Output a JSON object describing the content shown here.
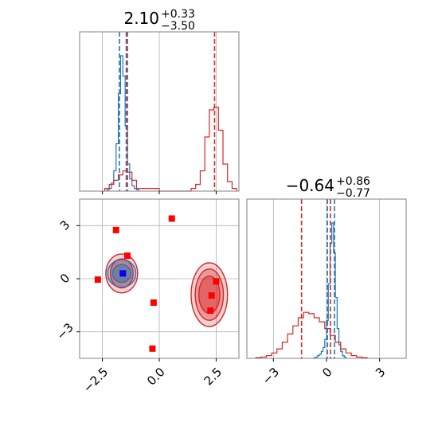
{
  "colors": {
    "series_blue": "#1f77b4",
    "series_red": "#d62728",
    "marker_red": "#ff0000",
    "marker_blue": "#0000ff",
    "grid": "#b0b0b0",
    "spine": "#808080"
  },
  "chart_data": {
    "type": "corner",
    "grid": true,
    "titles": [
      {
        "param": "param_1",
        "value": "2.10",
        "plus": "+0.33",
        "minus": "−3.50"
      },
      {
        "param": "param_2",
        "value": "−0.64",
        "plus": "+0.86",
        "minus": "−0.77"
      }
    ],
    "axes": {
      "param_1": {
        "range": [
          -3.5,
          3.5
        ],
        "ticks": [
          -2.5,
          0.0,
          2.5
        ],
        "tick_labels": [
          "−2.5",
          "0.0",
          "2.5"
        ]
      },
      "param_2": {
        "range": [
          -4.5,
          4.5
        ],
        "ticks": [
          -3,
          0,
          3
        ],
        "tick_labels": [
          "−3",
          "0",
          "3"
        ]
      }
    },
    "series": [
      {
        "color": "series_blue",
        "histograms": {
          "param_1": {
            "edges": [
              -2.3,
              -2.2,
              -2.1,
              -2.0,
              -1.9,
              -1.8,
              -1.7,
              -1.6,
              -1.5,
              -1.4,
              -1.3,
              -1.2,
              -1.1,
              -1.0,
              -0.9
            ],
            "counts": [
              0.01,
              0.02,
              0.06,
              0.15,
              0.35,
              0.72,
              1.0,
              0.85,
              0.48,
              0.2,
              0.09,
              0.04,
              0.02,
              0.01
            ]
          },
          "param_2": {
            "edges": [
              -0.7,
              -0.6,
              -0.5,
              -0.4,
              -0.3,
              -0.2,
              -0.1,
              0.0,
              0.1,
              0.2,
              0.3,
              0.4,
              0.5,
              0.6,
              0.7,
              0.8,
              0.9,
              1.0,
              1.1
            ],
            "counts": [
              0.005,
              0.01,
              0.02,
              0.03,
              0.05,
              0.08,
              0.14,
              0.28,
              0.55,
              0.85,
              1.0,
              0.78,
              0.45,
              0.22,
              0.1,
              0.05,
              0.02,
              0.01
            ]
          }
        },
        "quantile_lines": {
          "param_1": [
            -1.75,
            -1.45
          ],
          "param_2": [
            0.05,
            0.45
          ]
        },
        "contours_2d": [
          {
            "cx": -1.65,
            "cy": 0.3,
            "rx": 0.62,
            "ry": 0.78,
            "level": "outer"
          },
          {
            "cx": -1.65,
            "cy": 0.3,
            "rx": 0.4,
            "ry": 0.5,
            "level": "inner"
          }
        ]
      },
      {
        "color": "series_red",
        "histograms": {
          "param_1": {
            "edges": [
              -2.4,
              -2.2,
              -2.0,
              -1.8,
              -1.6,
              -1.4,
              -1.2,
              -1.0,
              0.0,
              0.2,
              1.2,
              1.4,
              1.6,
              1.8,
              2.0,
              2.2,
              2.4,
              2.6,
              2.8,
              3.0,
              3.2,
              3.4
            ],
            "counts": [
              0.02,
              0.05,
              0.08,
              0.12,
              0.15,
              0.14,
              0.08,
              0.02,
              0.0,
              0.0,
              0.0,
              0.02,
              0.05,
              0.15,
              0.4,
              0.6,
              0.62,
              0.45,
              0.2,
              0.07,
              0.02
            ]
          },
          "param_2": {
            "edges": [
              -4.0,
              -3.7,
              -3.4,
              -3.1,
              -2.8,
              -2.5,
              -2.2,
              -1.9,
              -1.6,
              -1.3,
              -1.0,
              -0.7,
              -0.4,
              -0.1,
              0.2,
              0.5,
              0.8,
              1.1,
              1.4,
              1.7,
              2.0,
              2.3
            ],
            "counts": [
              0.005,
              0.01,
              0.02,
              0.04,
              0.07,
              0.12,
              0.18,
              0.24,
              0.3,
              0.34,
              0.33,
              0.3,
              0.27,
              0.22,
              0.17,
              0.12,
              0.07,
              0.04,
              0.02,
              0.01,
              0.005
            ]
          }
        },
        "quantile_lines": {
          "param_1": [
            -1.4,
            2.43
          ],
          "param_2": [
            -1.41,
            0.22
          ]
        },
        "contours_2d": [
          {
            "cx": -1.65,
            "cy": 0.3,
            "rx": 0.7,
            "ry": 1.1,
            "level": "outer"
          },
          {
            "cx": -1.65,
            "cy": 0.3,
            "rx": 0.5,
            "ry": 0.82,
            "level": "inner"
          },
          {
            "cx": 2.2,
            "cy": -0.9,
            "rx": 0.8,
            "ry": 1.8,
            "level": "outer"
          },
          {
            "cx": 2.2,
            "cy": -0.9,
            "rx": 0.62,
            "ry": 1.45,
            "level": "mid"
          },
          {
            "cx": 2.2,
            "cy": -0.9,
            "rx": 0.46,
            "ry": 1.05,
            "level": "inner"
          }
        ]
      }
    ],
    "markers": [
      {
        "x": -1.9,
        "y": 2.75,
        "color": "marker_red"
      },
      {
        "x": 0.55,
        "y": 3.4,
        "color": "marker_red"
      },
      {
        "x": -1.4,
        "y": 1.3,
        "color": "marker_red"
      },
      {
        "x": -2.7,
        "y": -0.05,
        "color": "marker_red"
      },
      {
        "x": -0.25,
        "y": -1.35,
        "color": "marker_red"
      },
      {
        "x": -0.3,
        "y": -3.95,
        "color": "marker_red"
      },
      {
        "x": 2.5,
        "y": -0.15,
        "color": "marker_red"
      },
      {
        "x": 2.3,
        "y": -0.95,
        "color": "marker_red"
      },
      {
        "x": 2.25,
        "y": -1.8,
        "color": "marker_red"
      },
      {
        "x": -1.6,
        "y": 0.3,
        "color": "marker_blue"
      }
    ]
  }
}
